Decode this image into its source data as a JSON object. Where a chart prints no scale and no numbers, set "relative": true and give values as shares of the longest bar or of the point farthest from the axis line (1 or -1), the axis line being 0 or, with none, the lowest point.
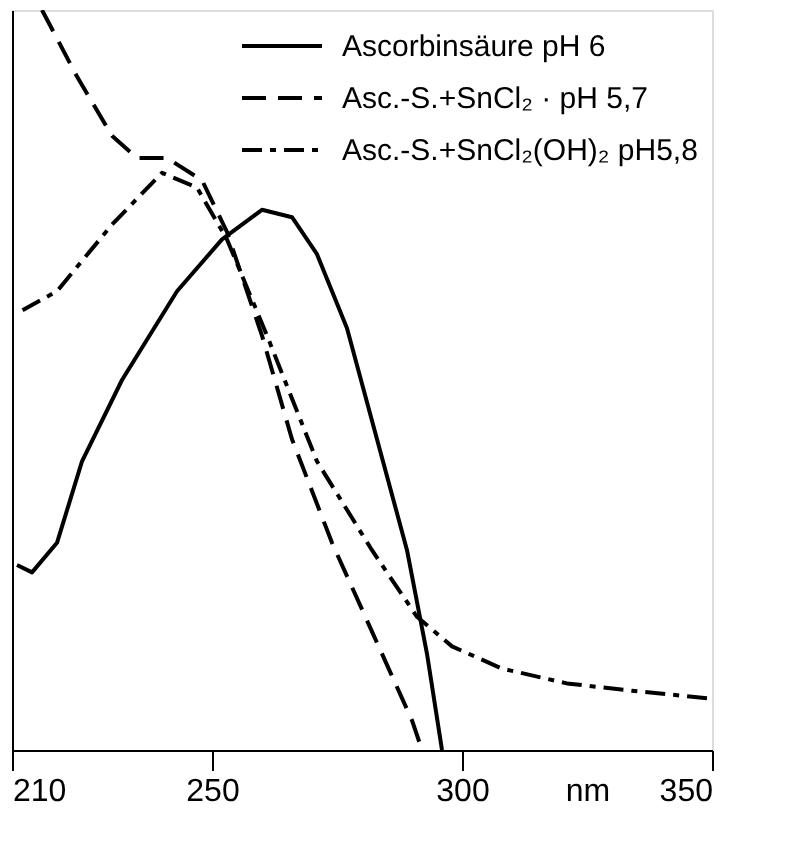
{
  "chart_data": {
    "type": "line",
    "relative": true,
    "xlabel": "nm",
    "xlim": [
      210,
      350
    ],
    "xticks": [
      210,
      250,
      300,
      350
    ],
    "grid": false,
    "legend": "top right",
    "tick_labels": "x",
    "series": [
      {
        "name": "Ascorbinsäure  pH 6",
        "color": "#000000",
        "line_style": "solid",
        "x": [
          211,
          214,
          219,
          224,
          232,
          243,
          252,
          260,
          266,
          271,
          277,
          283,
          289,
          293,
          296
        ],
        "values": [
          0.25,
          0.24,
          0.28,
          0.39,
          0.5,
          0.62,
          0.69,
          0.73,
          0.72,
          0.67,
          0.57,
          0.42,
          0.27,
          0.13,
          0.0
        ]
      },
      {
        "name": "Asc.-S.+SnCl₂ · pH 5,7",
        "color": "#000000",
        "line_style": "dashed",
        "x": [
          216,
          223,
          230,
          235,
          241,
          248,
          253,
          260,
          266,
          274,
          282,
          290,
          292
        ],
        "values": [
          1.0,
          0.91,
          0.83,
          0.8,
          0.8,
          0.77,
          0.7,
          0.56,
          0.42,
          0.28,
          0.16,
          0.04,
          0.0
        ]
      },
      {
        "name": "Asc.-S.+SnCl₂(OH)₂ pH5,8",
        "color": "#000000",
        "line_style": "dashdot",
        "x": [
          211,
          219,
          230,
          240,
          247,
          253,
          261,
          271,
          282,
          291,
          298,
          308,
          321,
          334,
          349
        ],
        "values": [
          0.59,
          0.62,
          0.71,
          0.78,
          0.76,
          0.69,
          0.56,
          0.39,
          0.27,
          0.18,
          0.14,
          0.11,
          0.09,
          0.08,
          0.07
        ]
      }
    ]
  }
}
